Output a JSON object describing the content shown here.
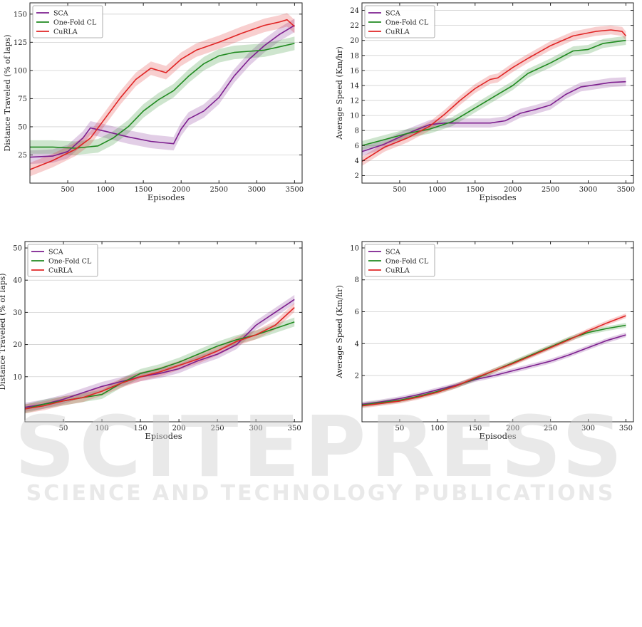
{
  "watermark": {
    "line1": "SCITEPRESS",
    "line2": "SCIENCE AND TECHNOLOGY PUBLICATIONS"
  },
  "colors": {
    "SCA": "#7d1f8f",
    "One-Fold CL": "#1f8a1f",
    "CuRLA": "#e02424",
    "grid": "#d0d0d0",
    "axis": "#222222"
  },
  "chart_data": [
    {
      "type": "line",
      "title": "",
      "xlabel": "Episodes",
      "ylabel": "Distance Traveled (% of laps)",
      "xlim": [
        0,
        3600
      ],
      "ylim": [
        0,
        160
      ],
      "xticks": [
        500,
        1000,
        1500,
        2000,
        2500,
        3000,
        3500
      ],
      "yticks": [
        25,
        50,
        75,
        100,
        125,
        150
      ],
      "legend": "top-left",
      "grid": true,
      "band": 6,
      "series": [
        {
          "name": "SCA",
          "x": [
            0,
            300,
            500,
            700,
            800,
            1000,
            1300,
            1600,
            1900,
            2000,
            2100,
            2300,
            2500,
            2700,
            2900,
            3100,
            3300,
            3500
          ],
          "y": [
            23,
            24,
            28,
            40,
            49,
            46,
            41,
            37,
            35,
            48,
            57,
            64,
            76,
            95,
            110,
            122,
            132,
            140
          ]
        },
        {
          "name": "One-Fold CL",
          "x": [
            0,
            300,
            600,
            900,
            1100,
            1300,
            1500,
            1700,
            1900,
            2100,
            2300,
            2500,
            2700,
            2900,
            3100,
            3300,
            3500
          ],
          "y": [
            32,
            32,
            31,
            33,
            40,
            50,
            64,
            74,
            82,
            95,
            106,
            113,
            116,
            117,
            118,
            121,
            124
          ]
        },
        {
          "name": "CuRLA",
          "x": [
            0,
            300,
            600,
            800,
            1000,
            1200,
            1400,
            1600,
            1700,
            1800,
            2000,
            2200,
            2500,
            2800,
            3100,
            3300,
            3400,
            3500
          ],
          "y": [
            12,
            20,
            30,
            40,
            58,
            76,
            92,
            102,
            100,
            98,
            110,
            118,
            125,
            133,
            140,
            143,
            145,
            139
          ]
        }
      ]
    },
    {
      "type": "line",
      "title": "",
      "xlabel": "Episodes",
      "ylabel": "Average Speed (Km/hr)",
      "xlim": [
        0,
        3600
      ],
      "ylim": [
        1,
        25
      ],
      "xticks": [
        500,
        1000,
        1500,
        2000,
        2500,
        3000,
        3500
      ],
      "yticks": [
        2,
        4,
        6,
        8,
        10,
        12,
        14,
        16,
        18,
        20,
        22,
        24
      ],
      "legend": "top-left",
      "grid": true,
      "band": 0.6,
      "series": [
        {
          "name": "SCA",
          "x": [
            0,
            300,
            600,
            900,
            1100,
            1400,
            1700,
            1900,
            2100,
            2300,
            2500,
            2700,
            2900,
            3100,
            3300,
            3500
          ],
          "y": [
            5.2,
            6.2,
            7.6,
            8.8,
            9.0,
            9.0,
            9.0,
            9.3,
            10.3,
            10.8,
            11.4,
            12.8,
            13.8,
            14.1,
            14.4,
            14.5
          ]
        },
        {
          "name": "One-Fold CL",
          "x": [
            0,
            300,
            600,
            900,
            1200,
            1500,
            1800,
            2000,
            2200,
            2500,
            2800,
            3000,
            3200,
            3500
          ],
          "y": [
            6.0,
            6.8,
            7.6,
            8.2,
            9.2,
            11.0,
            12.8,
            14.0,
            15.6,
            17.0,
            18.6,
            18.8,
            19.6,
            20.0
          ]
        },
        {
          "name": "CuRLA",
          "x": [
            0,
            300,
            600,
            900,
            1100,
            1300,
            1500,
            1700,
            1800,
            2000,
            2200,
            2500,
            2800,
            3100,
            3300,
            3450,
            3500
          ],
          "y": [
            3.9,
            5.8,
            7.0,
            8.6,
            10.2,
            12.0,
            13.6,
            14.8,
            15.0,
            16.4,
            17.6,
            19.3,
            20.6,
            21.2,
            21.4,
            21.2,
            20.6
          ]
        }
      ]
    },
    {
      "type": "line",
      "title": "",
      "xlabel": "Episodes",
      "ylabel": "Distance Traveled (% of laps)",
      "xlim": [
        0,
        360
      ],
      "ylim": [
        -4,
        52
      ],
      "xticks": [
        50,
        100,
        150,
        200,
        250,
        300,
        350
      ],
      "yticks": [
        10,
        20,
        30,
        40,
        50
      ],
      "legend": "top-left",
      "grid": true,
      "band": 1.4,
      "series": [
        {
          "name": "SCA",
          "x": [
            0,
            25,
            50,
            75,
            100,
            125,
            150,
            175,
            200,
            225,
            250,
            275,
            300,
            325,
            350
          ],
          "y": [
            0.5,
            1.5,
            3,
            5,
            7,
            8.5,
            10,
            11,
            12.5,
            15,
            17,
            20,
            26,
            30,
            34
          ]
        },
        {
          "name": "One-Fold CL",
          "x": [
            0,
            25,
            50,
            75,
            100,
            125,
            150,
            175,
            200,
            225,
            250,
            275,
            300,
            325,
            350
          ],
          "y": [
            0,
            1.5,
            2.5,
            3.5,
            4.5,
            8,
            11,
            12.5,
            14.5,
            17,
            19.5,
            21.5,
            23,
            25,
            27
          ]
        },
        {
          "name": "CuRLA",
          "x": [
            0,
            25,
            50,
            75,
            100,
            125,
            150,
            175,
            200,
            225,
            250,
            275,
            300,
            325,
            350
          ],
          "y": [
            0,
            1,
            2.5,
            3.5,
            5.5,
            8,
            10,
            11.5,
            13.5,
            15.5,
            18,
            21,
            23,
            26,
            31.5
          ]
        }
      ]
    },
    {
      "type": "line",
      "title": "",
      "xlabel": "Episodes",
      "ylabel": "Average Speed (Km/hr)",
      "xlim": [
        0,
        360
      ],
      "ylim": [
        -0.9,
        10.4
      ],
      "xticks": [
        50,
        100,
        150,
        200,
        250,
        300,
        350
      ],
      "yticks": [
        2,
        4,
        6,
        8,
        10
      ],
      "legend": "top-left",
      "grid": true,
      "band": 0.15,
      "series": [
        {
          "name": "SCA",
          "x": [
            0,
            25,
            50,
            75,
            100,
            125,
            150,
            175,
            200,
            225,
            250,
            275,
            300,
            325,
            350
          ],
          "y": [
            0.2,
            0.35,
            0.55,
            0.8,
            1.1,
            1.4,
            1.75,
            2.0,
            2.3,
            2.6,
            2.9,
            3.3,
            3.75,
            4.2,
            4.55
          ]
        },
        {
          "name": "One-Fold CL",
          "x": [
            0,
            25,
            50,
            75,
            100,
            125,
            150,
            175,
            200,
            225,
            250,
            275,
            300,
            325,
            350
          ],
          "y": [
            0.15,
            0.3,
            0.45,
            0.7,
            1.0,
            1.35,
            1.8,
            2.3,
            2.8,
            3.3,
            3.8,
            4.3,
            4.7,
            4.95,
            5.15
          ]
        },
        {
          "name": "CuRLA",
          "x": [
            0,
            25,
            50,
            75,
            100,
            125,
            150,
            175,
            200,
            225,
            250,
            275,
            300,
            325,
            350
          ],
          "y": [
            0.1,
            0.25,
            0.4,
            0.65,
            0.95,
            1.35,
            1.85,
            2.3,
            2.75,
            3.25,
            3.75,
            4.25,
            4.8,
            5.3,
            5.75
          ]
        }
      ]
    }
  ]
}
